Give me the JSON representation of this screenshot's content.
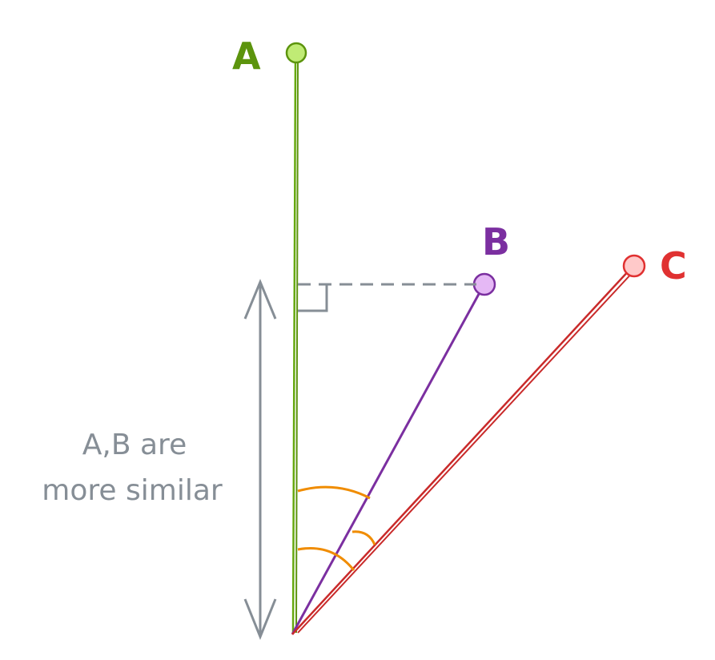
{
  "points": {
    "a": {
      "label": "A",
      "color": "#5c940d"
    },
    "b": {
      "label": "B",
      "color": "#7b2fa0"
    },
    "c": {
      "label": "C",
      "color": "#e03131"
    }
  },
  "annotation": {
    "line1": "A,B are",
    "line2": "more similar",
    "color": "#868e96"
  },
  "angle_color": "#f08c00"
}
